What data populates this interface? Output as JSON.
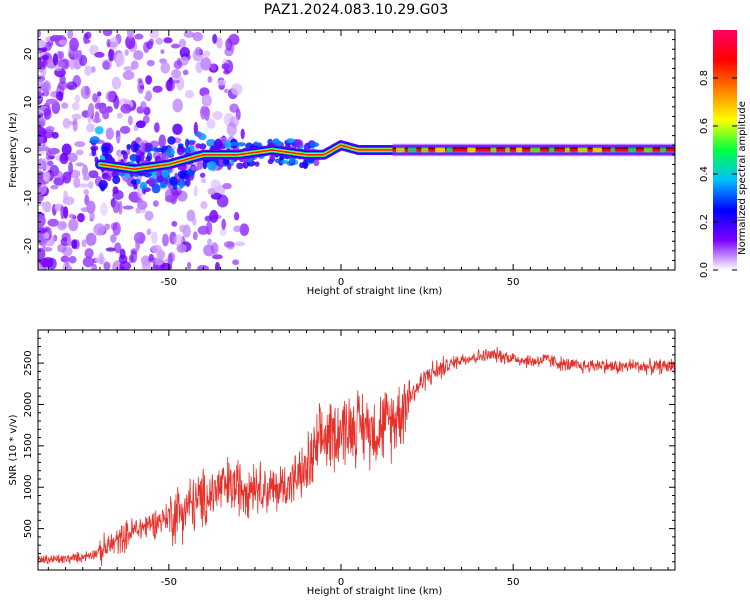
{
  "figure": {
    "title": "PAZ1.2024.083.10.29.G03"
  },
  "chart_data": [
    {
      "type": "heatmap",
      "xlabel": "Height of straight line (km)",
      "ylabel": "Frequency (Hz)",
      "xlim": [
        -88,
        97
      ],
      "ylim": [
        -25,
        25
      ],
      "xticks": [
        -50,
        0,
        50
      ],
      "yticks": [
        -20,
        -10,
        0,
        10,
        20
      ],
      "grid": false,
      "colorbar": {
        "label": "Normalized spectral amplitude",
        "range": [
          0,
          1
        ],
        "ticks": [
          0.0,
          0.2,
          0.4,
          0.6,
          0.8
        ],
        "colormap": [
          "#ffffff",
          "#7a00ff",
          "#0000ff",
          "#00c0ff",
          "#00ff40",
          "#ffff00",
          "#ff8000",
          "#ff0000",
          "#ff0066"
        ]
      },
      "ridge": {
        "description_points": [
          [
            -70,
            -3
          ],
          [
            -60,
            -4
          ],
          [
            -50,
            -3
          ],
          [
            -40,
            -1
          ],
          [
            -30,
            -1
          ],
          [
            -20,
            0
          ],
          [
            -10,
            -1
          ],
          [
            -5,
            -1
          ],
          [
            0,
            1
          ],
          [
            5,
            0
          ],
          [
            10,
            0
          ],
          [
            15,
            0
          ],
          [
            20,
            0
          ],
          [
            50,
            0
          ],
          [
            97,
            0
          ]
        ]
      }
    },
    {
      "type": "line",
      "xlabel": "Height of straight line (km)",
      "ylabel": "SNR (10 * v/v)",
      "xlim": [
        -88,
        97
      ],
      "ylim": [
        0,
        2900
      ],
      "xticks": [
        -50,
        0,
        50
      ],
      "yticks": [
        500,
        1000,
        1500,
        2000,
        2500
      ],
      "grid": false,
      "color": "#e8302a",
      "series": [
        {
          "x": [
            -88,
            -80,
            -75,
            -70,
            -65,
            -60,
            -55,
            -50,
            -45,
            -40,
            -35,
            -30,
            -25,
            -20,
            -15,
            -10,
            -5,
            0,
            5,
            10,
            15,
            20,
            25,
            30,
            35,
            40,
            45,
            50,
            55,
            60,
            65,
            70,
            75,
            80,
            85,
            90,
            97
          ],
          "values": [
            120,
            130,
            160,
            220,
            350,
            480,
            560,
            650,
            750,
            850,
            1000,
            1000,
            1050,
            950,
            1050,
            1200,
            1600,
            1700,
            1750,
            1700,
            1800,
            2100,
            2350,
            2450,
            2550,
            2580,
            2600,
            2560,
            2520,
            2540,
            2480,
            2460,
            2480,
            2450,
            2470,
            2450,
            2470
          ]
        }
      ]
    }
  ]
}
